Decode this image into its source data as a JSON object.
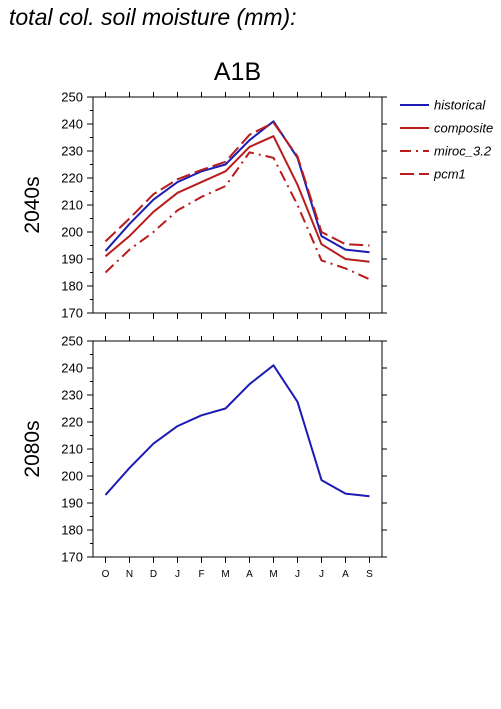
{
  "page": {
    "title": "total col. soil moisture (mm):"
  },
  "chart_data": [
    {
      "type": "line",
      "title": "A1B",
      "ylabel": "2040s",
      "xlabel": "",
      "categories": [
        "O",
        "N",
        "D",
        "J",
        "F",
        "M",
        "A",
        "M",
        "J",
        "J",
        "A",
        "S"
      ],
      "ylim": [
        170,
        250
      ],
      "yticks": [
        170,
        180,
        190,
        200,
        210,
        220,
        230,
        240,
        250
      ],
      "grid": false,
      "legend": "right-outside",
      "series": [
        {
          "name": "historical",
          "color": "#1c1cb4",
          "dash": "solid",
          "values": [
            193,
            203,
            212,
            218.5,
            222.5,
            225,
            234,
            241,
            227.5,
            198.5,
            193.5,
            192.5
          ]
        },
        {
          "name": "composite",
          "color": "#b81c1c",
          "dash": "solid",
          "values": [
            191,
            198.5,
            207.5,
            214.5,
            218.5,
            222.5,
            231.5,
            235.5,
            217.5,
            195.5,
            190,
            189
          ]
        },
        {
          "name": "miroc_3.2",
          "color": "#b81c1c",
          "dash": "dashdot",
          "values": [
            185,
            193.5,
            200,
            208,
            213,
            217,
            229.5,
            227.5,
            210,
            189.5,
            186.5,
            182.5
          ]
        },
        {
          "name": "pcm1",
          "color": "#b81c1c",
          "dash": "dashed",
          "values": [
            196.5,
            205,
            214,
            219.5,
            223,
            226,
            236,
            240.5,
            228,
            200,
            195.5,
            195
          ]
        }
      ]
    },
    {
      "type": "line",
      "title": "",
      "ylabel": "2080s",
      "xlabel": "",
      "categories": [
        "O",
        "N",
        "D",
        "J",
        "F",
        "M",
        "A",
        "M",
        "J",
        "J",
        "A",
        "S"
      ],
      "ylim": [
        170,
        250
      ],
      "yticks": [
        170,
        180,
        190,
        200,
        210,
        220,
        230,
        240,
        250
      ],
      "grid": false,
      "series": [
        {
          "name": "historical",
          "color": "#1c1cb4",
          "dash": "solid",
          "values": [
            193,
            203,
            212,
            218.5,
            222.5,
            225,
            234,
            241,
            227.5,
            198.5,
            193.5,
            192.5
          ]
        }
      ]
    }
  ]
}
